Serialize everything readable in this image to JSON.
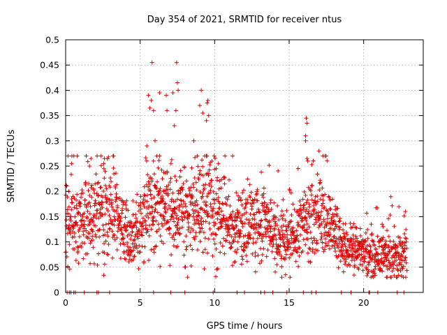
{
  "chart_data": {
    "type": "scatter",
    "title": "Day 354 of 2021, SRMTID for receiver ntus",
    "xlabel": "GPS time / hours",
    "ylabel": "SRMTID / TECUs",
    "xlim": [
      0,
      24
    ],
    "ylim": [
      0,
      0.5
    ],
    "x_ticks": [
      0,
      5,
      10,
      15,
      20
    ],
    "x_tick_labels": [
      "0",
      "5",
      "10",
      "15",
      "20"
    ],
    "y_ticks": [
      0,
      0.05,
      0.1,
      0.15,
      0.2,
      0.25,
      0.3,
      0.35,
      0.4,
      0.45,
      0.5
    ],
    "y_tick_labels": [
      "0",
      "0.05",
      "0.1",
      "0.15",
      "0.2",
      "0.25",
      "0.3",
      "0.35",
      "0.4",
      "0.45",
      "0.5"
    ],
    "grid": true,
    "marker": "+",
    "color": "#e00000",
    "series": [
      {
        "name": "SRMTID",
        "trend": [
          [
            0.0,
            0.14
          ],
          [
            0.5,
            0.145
          ],
          [
            1.0,
            0.14
          ],
          [
            1.5,
            0.15
          ],
          [
            2.0,
            0.155
          ],
          [
            2.5,
            0.16
          ],
          [
            3.0,
            0.155
          ],
          [
            3.5,
            0.15
          ],
          [
            4.0,
            0.12
          ],
          [
            4.5,
            0.095
          ],
          [
            5.0,
            0.13
          ],
          [
            5.5,
            0.17
          ],
          [
            6.0,
            0.16
          ],
          [
            6.5,
            0.165
          ],
          [
            7.0,
            0.165
          ],
          [
            7.5,
            0.16
          ],
          [
            8.0,
            0.15
          ],
          [
            8.5,
            0.155
          ],
          [
            9.0,
            0.175
          ],
          [
            9.5,
            0.18
          ],
          [
            10.0,
            0.165
          ],
          [
            10.5,
            0.145
          ],
          [
            11.0,
            0.13
          ],
          [
            11.5,
            0.13
          ],
          [
            12.0,
            0.135
          ],
          [
            12.5,
            0.14
          ],
          [
            13.0,
            0.14
          ],
          [
            13.5,
            0.13
          ],
          [
            14.0,
            0.11
          ],
          [
            14.5,
            0.1
          ],
          [
            15.0,
            0.1
          ],
          [
            15.5,
            0.11
          ],
          [
            16.0,
            0.145
          ],
          [
            16.5,
            0.145
          ],
          [
            17.0,
            0.14
          ],
          [
            17.5,
            0.14
          ],
          [
            18.0,
            0.12
          ],
          [
            18.5,
            0.1
          ],
          [
            19.0,
            0.085
          ],
          [
            19.5,
            0.08
          ],
          [
            20.0,
            0.075
          ],
          [
            20.5,
            0.075
          ],
          [
            21.0,
            0.07
          ],
          [
            21.5,
            0.07
          ],
          [
            22.0,
            0.065
          ],
          [
            22.5,
            0.07
          ],
          [
            22.9,
            0.075
          ]
        ],
        "spikes": [
          [
            5.55,
            0.39
          ],
          [
            5.65,
            0.365
          ],
          [
            5.75,
            0.38
          ],
          [
            5.8,
            0.455
          ],
          [
            5.9,
            0.36
          ],
          [
            5.45,
            0.29
          ],
          [
            6.0,
            0.3
          ],
          [
            6.3,
            0.395
          ],
          [
            6.75,
            0.39
          ],
          [
            6.8,
            0.36
          ],
          [
            7.2,
            0.395
          ],
          [
            7.45,
            0.455
          ],
          [
            7.5,
            0.415
          ],
          [
            7.55,
            0.4
          ],
          [
            7.4,
            0.36
          ],
          [
            7.3,
            0.33
          ],
          [
            9.1,
            0.4
          ],
          [
            9.0,
            0.37
          ],
          [
            9.2,
            0.355
          ],
          [
            9.5,
            0.375
          ],
          [
            9.55,
            0.38
          ],
          [
            9.6,
            0.35
          ],
          [
            9.45,
            0.34
          ],
          [
            8.6,
            0.3
          ],
          [
            16.15,
            0.345
          ],
          [
            16.2,
            0.335
          ],
          [
            16.1,
            0.31
          ],
          [
            16.2,
            0.265
          ],
          [
            16.25,
            0.26
          ],
          [
            16.1,
            0.3
          ],
          [
            17.0,
            0.28
          ],
          [
            1.7,
            0.265
          ],
          [
            1.6,
            0.25
          ],
          [
            2.6,
            0.265
          ],
          [
            2.55,
            0.255
          ],
          [
            0.4,
            0.185
          ],
          [
            3.4,
            0.195
          ],
          [
            10.25,
            0.255
          ],
          [
            10.1,
            0.245
          ],
          [
            15.6,
            0.245
          ],
          [
            18.1,
            0.17
          ],
          [
            21.3,
            0.13
          ],
          [
            22.8,
            0.16
          ]
        ],
        "zero_x": [
          0.1,
          0.25,
          0.35,
          0.55,
          0.65,
          1.25,
          2.1,
          2.2,
          2.95,
          5.9,
          7.05,
          8.0,
          9.9,
          11.5,
          12.0,
          13.1,
          13.35,
          13.9,
          14.85,
          15.95,
          16.5,
          16.8,
          18.5,
          19.15,
          20.35,
          20.4,
          20.95,
          22.25,
          22.7
        ]
      }
    ]
  }
}
